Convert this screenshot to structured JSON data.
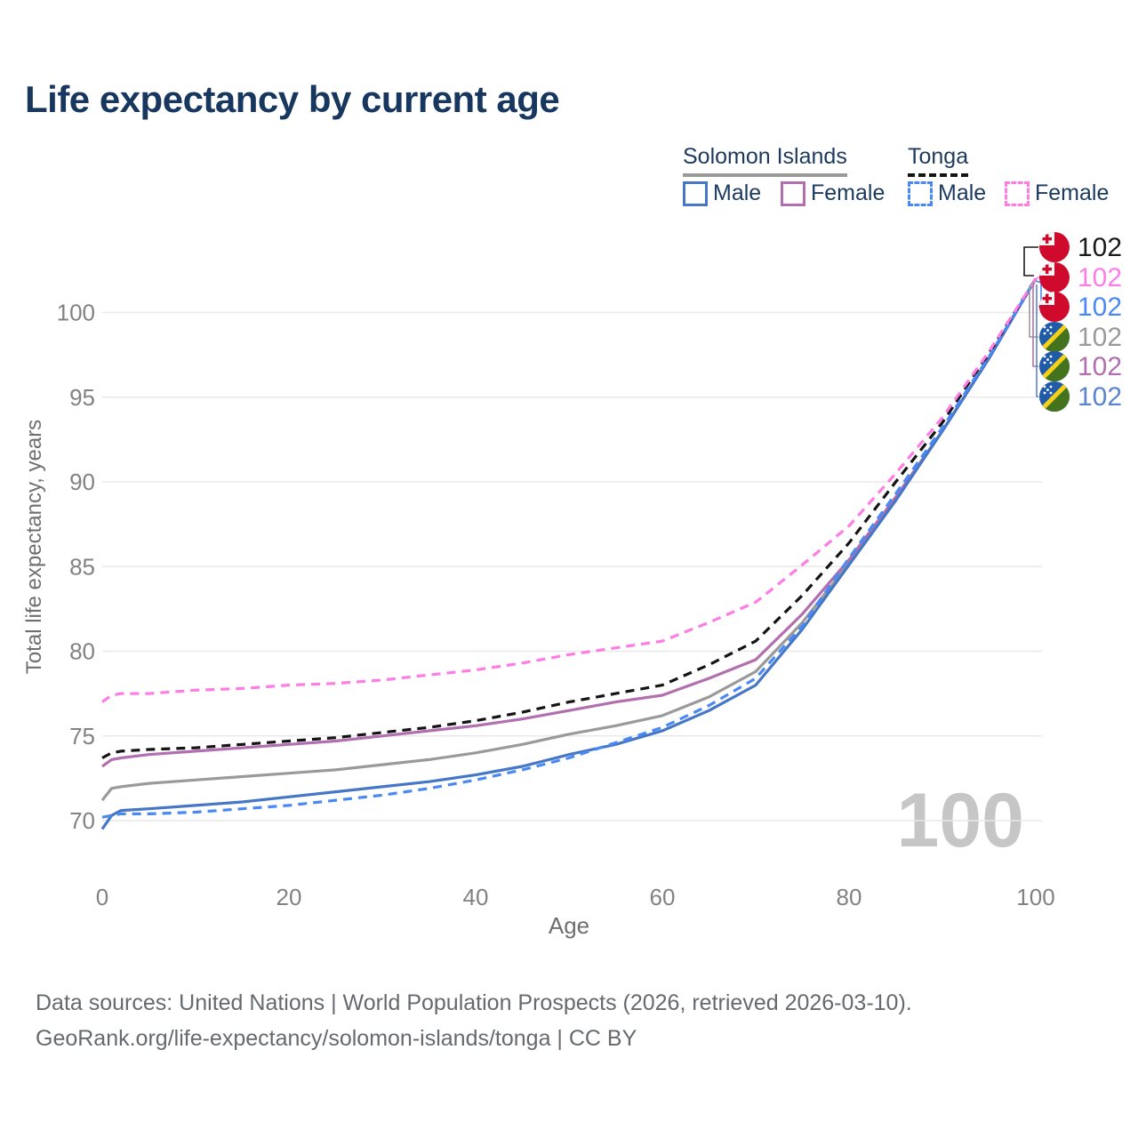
{
  "title": "Life expectancy by current age",
  "legend": {
    "groups": [
      {
        "country": "Solomon Islands",
        "underline_color": "#9a9a9a",
        "underline_style": "solid",
        "items": [
          {
            "label": "Male",
            "color": "#4577c6",
            "dashed": false
          },
          {
            "label": "Female",
            "color": "#b16fb0",
            "dashed": false
          }
        ]
      },
      {
        "country": "Tonga",
        "underline_color": "#141414",
        "underline_style": "dashed",
        "items": [
          {
            "label": "Male",
            "color": "#4a89f3",
            "dashed": true
          },
          {
            "label": "Female",
            "color": "#fe7de5",
            "dashed": true
          }
        ]
      }
    ]
  },
  "chart_data": {
    "type": "line",
    "title": "Life expectancy by current age",
    "xlabel": "Age",
    "ylabel": "Total life expectancy, years",
    "x_ticks": [
      0,
      20,
      40,
      60,
      80,
      100
    ],
    "y_ticks": [
      70,
      75,
      80,
      85,
      90,
      95,
      100
    ],
    "xlim": [
      0,
      100
    ],
    "ylim": [
      68.5,
      103
    ],
    "grid": "horizontal",
    "legend_position": "top-right",
    "watermark": "100",
    "x": [
      0,
      1,
      2,
      5,
      10,
      15,
      20,
      25,
      30,
      35,
      40,
      45,
      50,
      55,
      60,
      65,
      70,
      75,
      80,
      85,
      90,
      95,
      100
    ],
    "series": [
      {
        "name": "Solomon Islands Both sexes",
        "country": "Solomon Islands",
        "sex": "both",
        "color": "#9a9a9a",
        "dashed": false,
        "values": [
          71.2,
          71.9,
          72.0,
          72.2,
          72.4,
          72.6,
          72.8,
          73.0,
          73.3,
          73.6,
          74.0,
          74.5,
          75.1,
          75.6,
          76.2,
          77.3,
          78.8,
          81.7,
          85.2,
          89.0,
          93.0,
          97.3,
          102
        ]
      },
      {
        "name": "Solomon Islands Female",
        "country": "Solomon Islands",
        "sex": "female",
        "color": "#b16fb0",
        "dashed": false,
        "values": [
          73.2,
          73.6,
          73.7,
          73.9,
          74.1,
          74.3,
          74.5,
          74.7,
          75.0,
          75.3,
          75.6,
          76.0,
          76.5,
          77.0,
          77.4,
          78.4,
          79.5,
          82.2,
          85.4,
          89.1,
          93.0,
          97.3,
          102
        ]
      },
      {
        "name": "Solomon Islands Male",
        "country": "Solomon Islands",
        "sex": "male",
        "color": "#4577c6",
        "dashed": false,
        "values": [
          69.5,
          70.3,
          70.6,
          70.7,
          70.9,
          71.1,
          71.4,
          71.7,
          72.0,
          72.3,
          72.7,
          73.2,
          73.9,
          74.5,
          75.3,
          76.5,
          78.0,
          81.3,
          85.1,
          88.9,
          93.0,
          97.3,
          102
        ]
      },
      {
        "name": "Tonga Both sexes",
        "country": "Tonga",
        "sex": "both",
        "color": "#141414",
        "dashed": true,
        "values": [
          73.7,
          74.0,
          74.1,
          74.2,
          74.3,
          74.5,
          74.7,
          74.9,
          75.2,
          75.5,
          75.9,
          76.4,
          77.0,
          77.5,
          78.0,
          79.2,
          80.6,
          83.3,
          86.4,
          90.0,
          93.5,
          97.6,
          102
        ]
      },
      {
        "name": "Tonga Male",
        "country": "Tonga",
        "sex": "male",
        "color": "#4a89f3",
        "dashed": true,
        "values": [
          70.2,
          70.3,
          70.4,
          70.4,
          70.5,
          70.7,
          70.9,
          71.2,
          71.5,
          71.9,
          72.4,
          73.0,
          73.7,
          74.6,
          75.5,
          76.8,
          78.4,
          81.5,
          85.5,
          89.3,
          93.2,
          97.4,
          102
        ]
      },
      {
        "name": "Tonga Female",
        "country": "Tonga",
        "sex": "female",
        "color": "#fe7de5",
        "dashed": true,
        "values": [
          77.0,
          77.4,
          77.5,
          77.5,
          77.7,
          77.8,
          78.0,
          78.1,
          78.3,
          78.6,
          78.9,
          79.3,
          79.8,
          80.2,
          80.6,
          81.7,
          82.9,
          85.1,
          87.4,
          90.5,
          93.8,
          97.7,
          102
        ]
      }
    ],
    "end_labels": [
      {
        "flag": "tonga",
        "value": "102",
        "color": "#1a1a1a"
      },
      {
        "flag": "tonga",
        "value": "102",
        "color": "#fe7de5"
      },
      {
        "flag": "tonga",
        "value": "102",
        "color": "#4a89f3"
      },
      {
        "flag": "solomon",
        "value": "102",
        "color": "#9a9a9a"
      },
      {
        "flag": "solomon",
        "value": "102",
        "color": "#b16fb0"
      },
      {
        "flag": "solomon",
        "value": "102",
        "color": "#5b84cf"
      }
    ]
  },
  "footer": {
    "line1": "Data sources: United Nations | World Population Prospects (2026, retrieved 2026-03-10).",
    "line2": "GeoRank.org/life-expectancy/solomon-islands/tonga | CC BY"
  }
}
